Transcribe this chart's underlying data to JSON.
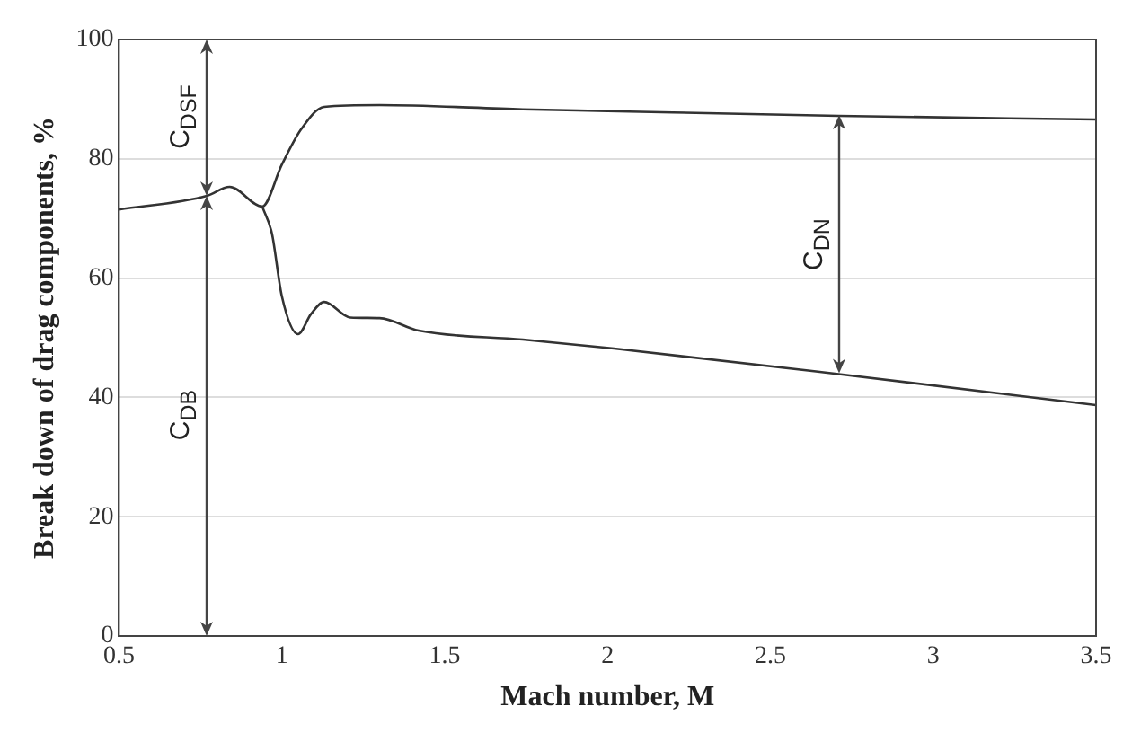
{
  "chart_data": {
    "type": "line",
    "xlabel": "Mach number, M",
    "ylabel": "Break down of drag components, %",
    "xlim": [
      0.5,
      3.5
    ],
    "xticks": [
      0.5,
      1,
      1.5,
      2,
      2.5,
      3,
      3.5
    ],
    "ylim": [
      0,
      100
    ],
    "yticks": [
      0,
      20,
      40,
      60,
      80,
      100
    ],
    "grid": "y",
    "legend": false,
    "marker": "none",
    "line_style": "solid",
    "series": [
      {
        "color": "#333333",
        "x": [
          0.5,
          0.77,
          0.84,
          0.94,
          1.0,
          1.06,
          1.13,
          1.3,
          1.74,
          2.0,
          2.71,
          3.5
        ],
        "values": [
          71.5,
          73.8,
          75.3,
          72,
          79,
          85,
          88.7,
          89,
          88.3,
          88,
          87.2,
          86.6
        ]
      },
      {
        "color": "#333333",
        "x": [
          0.94,
          0.97,
          1.0,
          1.05,
          1.09,
          1.13,
          1.21,
          1.3,
          1.42,
          1.74,
          2.02,
          2.71,
          3.5
        ],
        "values": [
          72,
          67.4,
          57,
          50.6,
          54,
          56,
          53.4,
          53.3,
          51.2,
          49.7,
          48.2,
          43.9,
          38.7
        ]
      }
    ],
    "annotations": [
      "C$_{DSF}$",
      "C$_{DB}$",
      "C$_{DN}$"
    ]
  }
}
